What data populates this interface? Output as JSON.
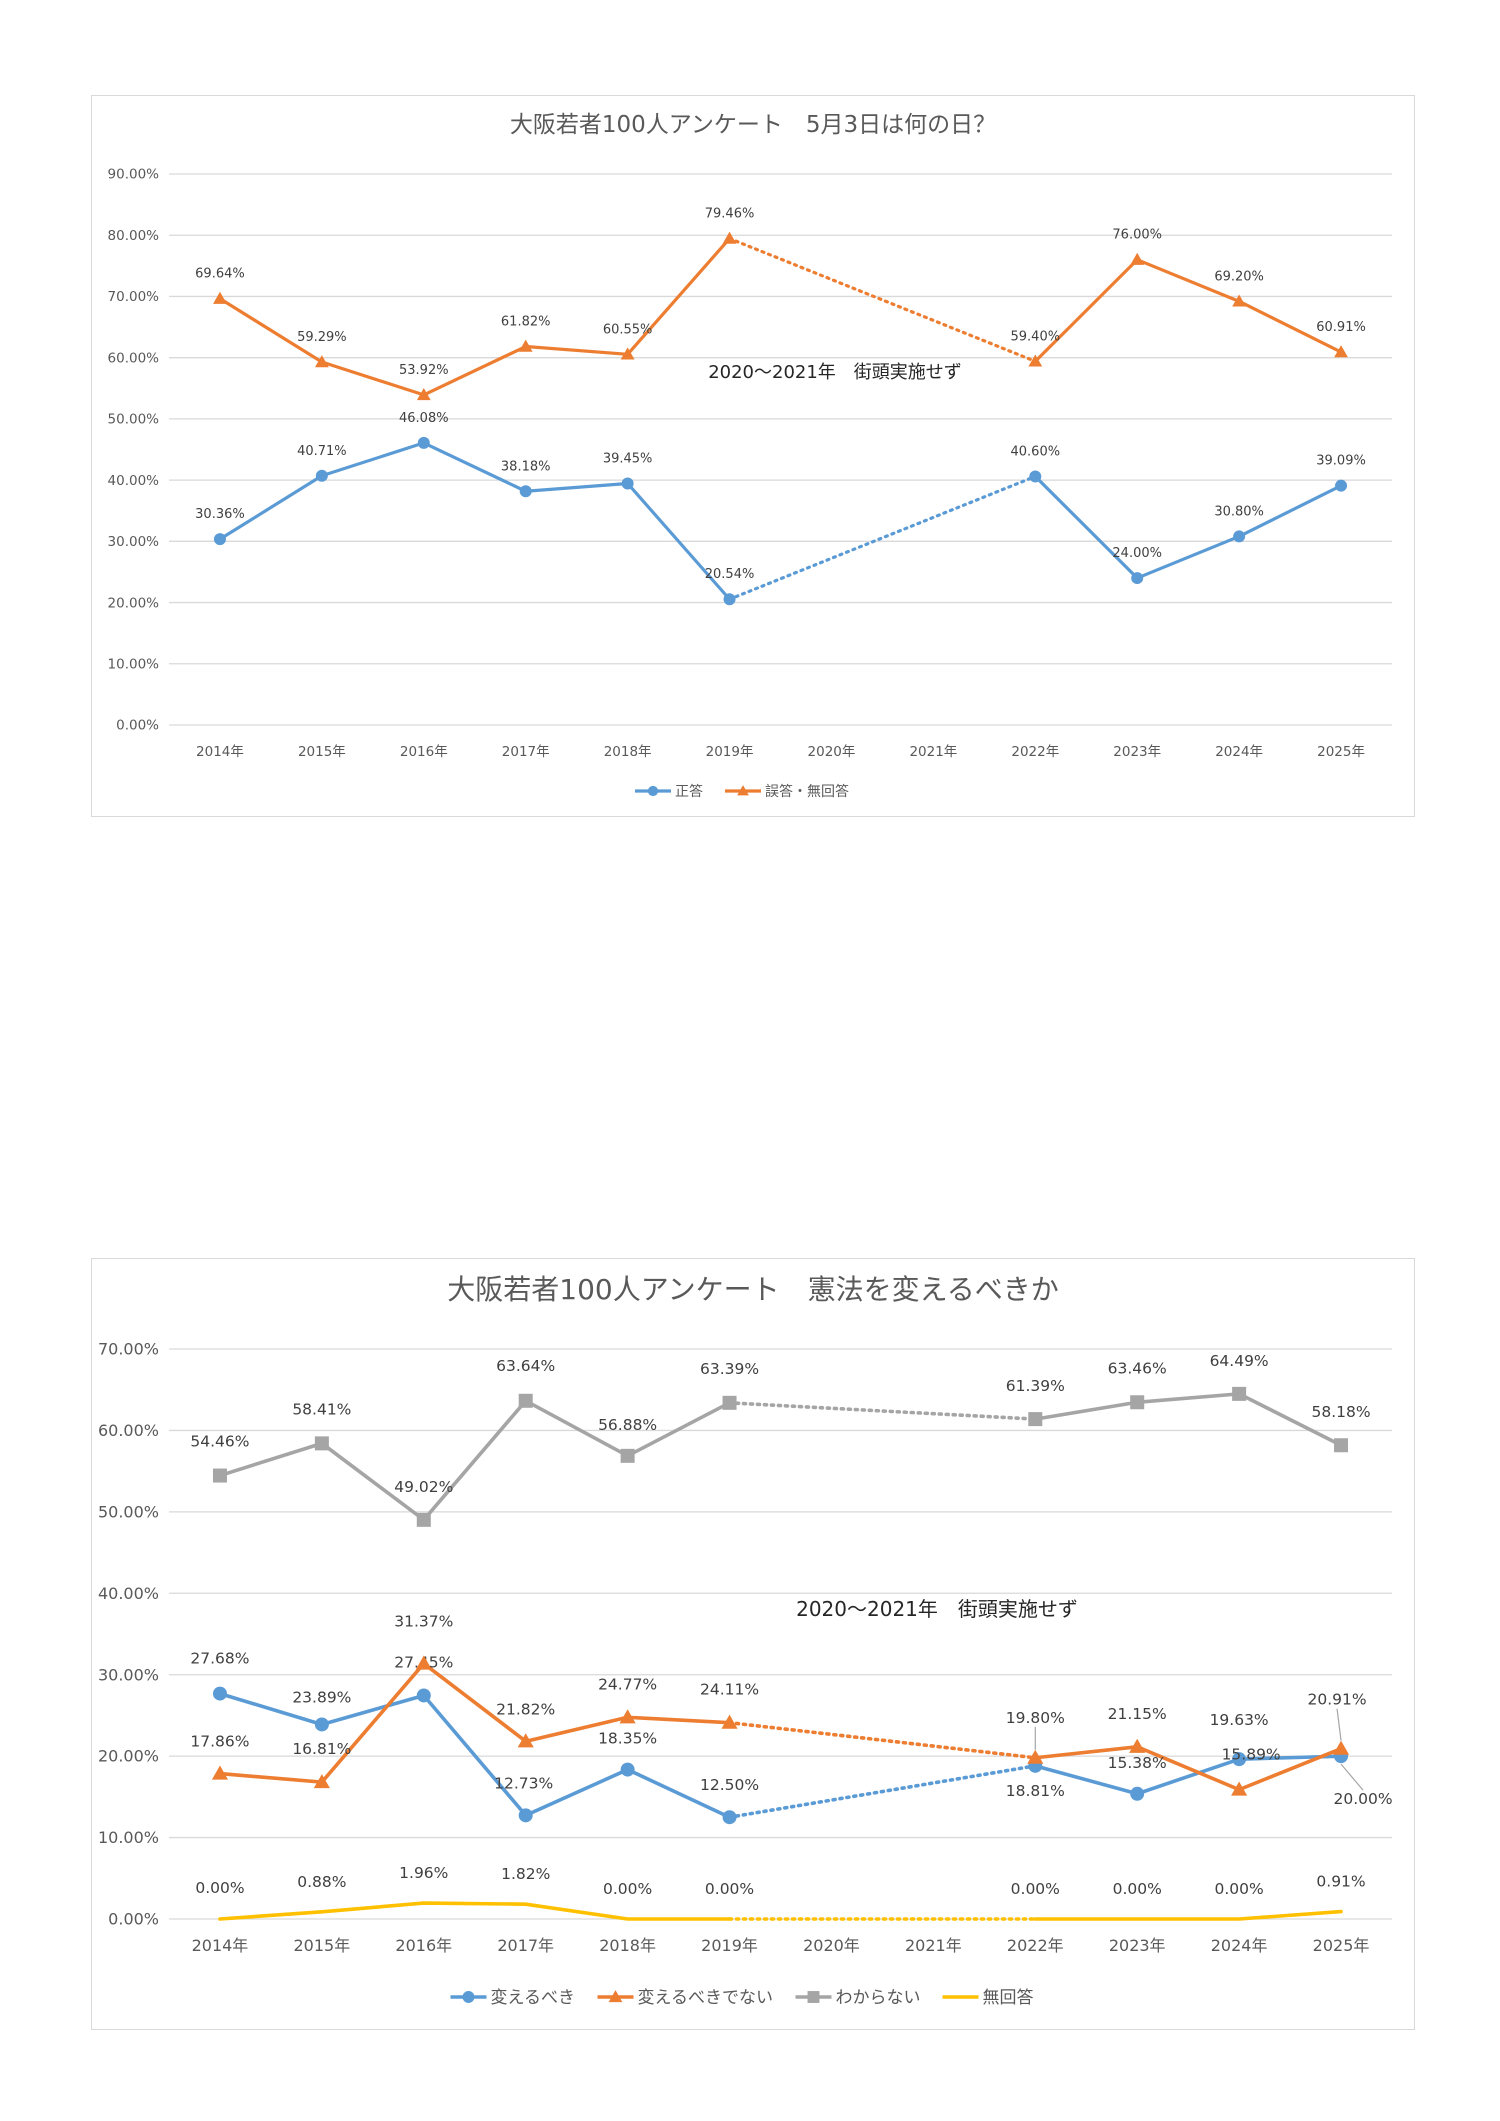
{
  "chart_data": [
    {
      "type": "line",
      "title": "大阪若者100人アンケート　5月3日は何の日？",
      "categories": [
        "2014年",
        "2015年",
        "2016年",
        "2017年",
        "2018年",
        "2019年",
        "2020年",
        "2021年",
        "2022年",
        "2023年",
        "2024年",
        "2025年"
      ],
      "ylim": [
        0,
        90
      ],
      "yticks": [
        "0.00%",
        "10.00%",
        "20.00%",
        "30.00%",
        "40.00%",
        "50.00%",
        "60.00%",
        "70.00%",
        "80.00%",
        "90.00%"
      ],
      "grid": true,
      "legend_position": "bottom",
      "annotation": "2020～2021年　街頭実施せず",
      "series": [
        {
          "name": "正答",
          "color": "#5b9bd5",
          "marker": "circle",
          "values": [
            30.36,
            40.71,
            46.08,
            38.18,
            39.45,
            20.54,
            null,
            null,
            40.6,
            24.0,
            30.8,
            39.09
          ],
          "labels": [
            "30.36%",
            "40.71%",
            "46.08%",
            "38.18%",
            "39.45%",
            "20.54%",
            null,
            null,
            "40.60%",
            "24.00%",
            "30.80%",
            "39.09%"
          ]
        },
        {
          "name": "誤答・無回答",
          "color": "#ed7d31",
          "marker": "triangle",
          "values": [
            69.64,
            59.29,
            53.92,
            61.82,
            60.55,
            79.46,
            null,
            null,
            59.4,
            76.0,
            69.2,
            60.91
          ],
          "labels": [
            "69.64%",
            "59.29%",
            "53.92%",
            "61.82%",
            "60.55%",
            "79.46%",
            null,
            null,
            "59.40%",
            "76.00%",
            "69.20%",
            "60.91%"
          ]
        }
      ]
    },
    {
      "type": "line",
      "title": "大阪若者100人アンケート　憲法を変えるべきか",
      "categories": [
        "2014年",
        "2015年",
        "2016年",
        "2017年",
        "2018年",
        "2019年",
        "2020年",
        "2021年",
        "2022年",
        "2023年",
        "2024年",
        "2025年"
      ],
      "ylim": [
        0,
        70
      ],
      "yticks": [
        "0.00%",
        "10.00%",
        "20.00%",
        "30.00%",
        "40.00%",
        "50.00%",
        "60.00%",
        "70.00%"
      ],
      "grid": true,
      "legend_position": "bottom",
      "annotation": "2020～2021年　街頭実施せず",
      "series": [
        {
          "name": "変えるべき",
          "color": "#5b9bd5",
          "marker": "circle",
          "values": [
            27.68,
            23.89,
            27.45,
            12.73,
            18.35,
            12.5,
            null,
            null,
            18.81,
            15.38,
            19.63,
            20.0
          ],
          "labels": [
            "27.68%",
            "23.89%",
            "27.45%",
            "12.73%",
            "18.35%",
            "12.50%",
            null,
            null,
            "18.81%",
            "15.38%",
            "19.63%",
            "20.00%"
          ]
        },
        {
          "name": "変えるべきでない",
          "color": "#ed7d31",
          "marker": "triangle",
          "values": [
            17.86,
            16.81,
            31.37,
            21.82,
            24.77,
            24.11,
            null,
            null,
            19.8,
            21.15,
            15.89,
            20.91
          ],
          "labels": [
            "17.86%",
            "16.81%",
            "31.37%",
            "21.82%",
            "24.77%",
            "24.11%",
            null,
            null,
            "19.80%",
            "21.15%",
            "15.89%",
            "20.91%"
          ]
        },
        {
          "name": "わからない",
          "color": "#a5a5a5",
          "marker": "square",
          "values": [
            54.46,
            58.41,
            49.02,
            63.64,
            56.88,
            63.39,
            null,
            null,
            61.39,
            63.46,
            64.49,
            58.18
          ],
          "labels": [
            "54.46%",
            "58.41%",
            "49.02%",
            "63.64%",
            "56.88%",
            "63.39%",
            null,
            null,
            "61.39%",
            "63.46%",
            "64.49%",
            "58.18%"
          ]
        },
        {
          "name": "無回答",
          "color": "#ffc000",
          "marker": "none",
          "values": [
            0.0,
            0.88,
            1.96,
            1.82,
            0.0,
            0.0,
            null,
            null,
            0.0,
            0.0,
            0.0,
            0.91
          ],
          "labels": [
            "0.00%",
            "0.88%",
            "1.96%",
            "1.82%",
            "0.00%",
            "0.00%",
            null,
            null,
            "0.00%",
            "0.00%",
            "0.00%",
            "0.91%"
          ]
        }
      ]
    }
  ]
}
